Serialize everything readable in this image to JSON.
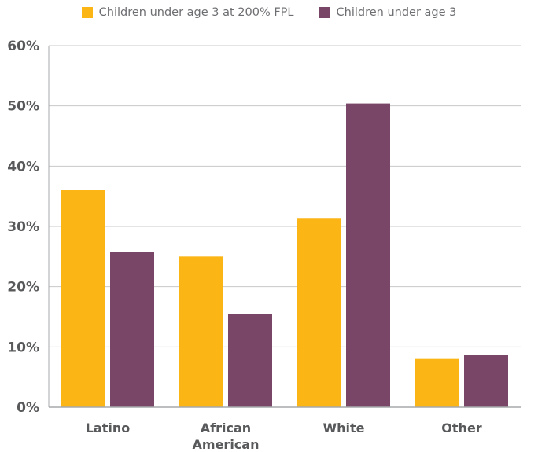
{
  "chart_data": {
    "type": "bar",
    "categories": [
      [
        "Latino"
      ],
      [
        "African",
        "American"
      ],
      [
        "White"
      ],
      [
        "Other"
      ]
    ],
    "series": [
      {
        "name": "Children under age 3 at 200% FPL",
        "color": "#fbb514",
        "values": [
          36,
          25,
          31.4,
          8
        ]
      },
      {
        "name": "Children under age 3",
        "color": "#7a4668",
        "values": [
          25.8,
          15.5,
          50.4,
          8.7
        ]
      }
    ],
    "yticks": [
      "0%",
      "10%",
      "20%",
      "30%",
      "40%",
      "50%",
      "60%"
    ],
    "ylim": [
      0,
      60
    ],
    "grid": true,
    "legend_position": "top-center"
  }
}
